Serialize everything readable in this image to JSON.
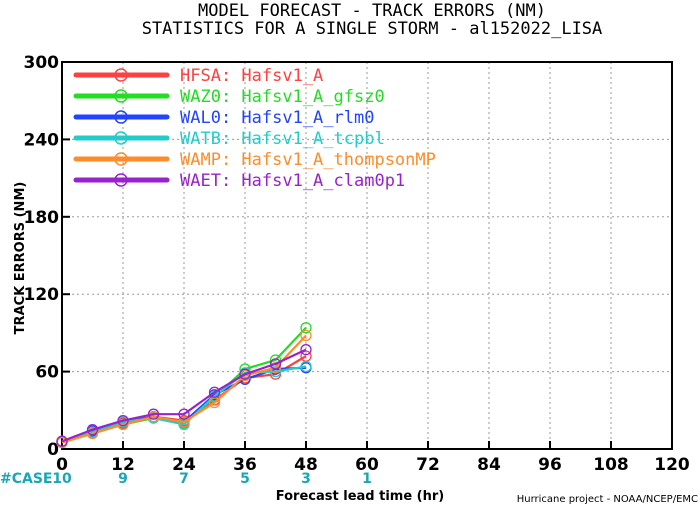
{
  "chart_data": {
    "type": "line",
    "title_line1": "MODEL FORECAST - TRACK ERRORS (NM)",
    "title_line2": "STATISTICS FOR A SINGLE STORM - al152022_LISA",
    "xlabel": "Forecast lead time (hr)",
    "ylabel": "TRACK ERRORS (NM)",
    "xlim": [
      0,
      120
    ],
    "ylim": [
      0,
      300
    ],
    "x_ticks": [
      "0",
      "12",
      "24",
      "36",
      "48",
      "60",
      "72",
      "84",
      "96",
      "108",
      "120"
    ],
    "y_ticks": [
      "0",
      "60",
      "120",
      "180",
      "240",
      "300"
    ],
    "grid": true,
    "legend_position": "top-left",
    "x": [
      0,
      6,
      12,
      18,
      24,
      30,
      36,
      42,
      48
    ],
    "series": [
      {
        "name": "HFSA:  Hafsv1_A",
        "color": "#ff4040",
        "values": [
          6,
          13,
          20,
          25,
          22,
          38,
          55,
          58,
          72
        ]
      },
      {
        "name": "WAZ0:  Hafsv1_A_gfsz0",
        "color": "#22dd22",
        "values": [
          6,
          12,
          19,
          24,
          20,
          40,
          62,
          69,
          94
        ]
      },
      {
        "name": "WAL0:  Hafsv1_A_rlm0",
        "color": "#2244ff",
        "values": [
          5,
          14,
          21,
          25,
          21,
          42,
          54,
          62,
          63
        ]
      },
      {
        "name": "WATB:  Hafsv1_A_tcpbl",
        "color": "#22cccc",
        "values": [
          6,
          13,
          21,
          24,
          19,
          41,
          59,
          60,
          64
        ]
      },
      {
        "name": "WAMP:  Hafsv1_A_thompsonMP",
        "color": "#ff8c2a",
        "values": [
          5,
          12,
          19,
          25,
          21,
          36,
          57,
          63,
          88
        ]
      },
      {
        "name": "WAET:  Hafsv1_A_clam0p1",
        "color": "#9922cc",
        "values": [
          6,
          15,
          22,
          27,
          27,
          44,
          58,
          66,
          77
        ]
      }
    ],
    "case_label": "#CASE",
    "case_x": [
      0,
      12,
      24,
      36,
      48,
      60
    ],
    "case_counts": [
      "10",
      "9",
      "7",
      "5",
      "3",
      "1"
    ],
    "credit": "Hurricane project - NOAA/NCEP/EMC"
  }
}
